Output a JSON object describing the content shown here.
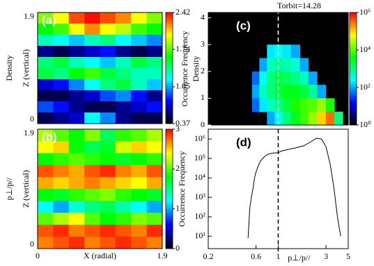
{
  "chart_data": [
    {
      "type": "heatmap",
      "panel_label": "(a)",
      "row_label": "Density",
      "ylabel": "Z (vertical)",
      "ylim": [
        0,
        1.9
      ],
      "yticks": [
        0,
        1.9
      ],
      "clim": [
        0.37,
        2.42
      ],
      "cticks": [
        0.37,
        1.05,
        1.74,
        2.42
      ],
      "colormap": [
        "#000000",
        "#0000ff",
        "#00ffff",
        "#00ff00",
        "#ffff00",
        "#ff0000"
      ],
      "values": [
        [
          1.8,
          2.0,
          2.3,
          2.4,
          2.3,
          2.2,
          2.0,
          1.8
        ],
        [
          1.6,
          1.7,
          2.0,
          2.2,
          2.0,
          1.9,
          1.7,
          1.6
        ],
        [
          1.3,
          1.2,
          1.1,
          1.3,
          1.4,
          1.2,
          1.1,
          1.0
        ],
        [
          0.6,
          0.5,
          0.6,
          0.7,
          0.8,
          0.6,
          0.5,
          0.6
        ],
        [
          1.4,
          1.5,
          1.3,
          1.2,
          1.1,
          1.3,
          1.5,
          1.4
        ],
        [
          1.5,
          1.4,
          1.6,
          1.7,
          1.5,
          1.4,
          1.3,
          1.3
        ],
        [
          0.7,
          0.8,
          1.0,
          1.2,
          1.4,
          1.5,
          1.3,
          1.1
        ],
        [
          0.5,
          0.5,
          0.6,
          0.7,
          0.9,
          1.0,
          0.8,
          0.6
        ],
        [
          0.9,
          0.8,
          0.6,
          0.5,
          0.5,
          0.6,
          0.7,
          0.8
        ],
        [
          0.5,
          0.6,
          0.7,
          1.2,
          1.0,
          0.6,
          0.5,
          0.5
        ]
      ]
    },
    {
      "type": "heatmap",
      "panel_label": "(b)",
      "row_label": "p⊥/p//",
      "ylabel": "Z (vertical)",
      "xlabel": "X (radial)",
      "xlim": [
        0,
        1.9
      ],
      "xticks": [
        0,
        1.9
      ],
      "ylim": [
        0,
        1.9
      ],
      "yticks": [
        0,
        1.9
      ],
      "clim": [
        0,
        3
      ],
      "cticks": [
        0,
        1,
        2,
        3
      ],
      "colormap": [
        "#000000",
        "#0000ff",
        "#00ffff",
        "#00ff00",
        "#ffff00",
        "#ff0000"
      ],
      "values": [
        [
          2.2,
          2.0,
          1.8,
          2.1,
          1.6,
          1.9,
          2.0,
          2.2
        ],
        [
          2.4,
          2.5,
          1.8,
          1.6,
          1.7,
          2.3,
          2.5,
          2.4
        ],
        [
          1.8,
          1.9,
          2.0,
          1.9,
          1.8,
          1.7,
          1.8,
          1.9
        ],
        [
          2.8,
          2.7,
          2.6,
          2.8,
          2.9,
          2.7,
          2.6,
          2.8
        ],
        [
          2.6,
          2.5,
          2.6,
          2.7,
          2.6,
          2.5,
          2.4,
          2.6
        ],
        [
          1.8,
          1.7,
          1.9,
          2.0,
          2.1,
          1.9,
          1.8,
          1.7
        ],
        [
          1.2,
          1.0,
          1.3,
          1.5,
          1.6,
          1.4,
          1.2,
          1.0
        ],
        [
          2.0,
          2.2,
          2.4,
          2.0,
          1.8,
          1.9,
          2.1,
          2.0
        ],
        [
          2.8,
          2.9,
          2.7,
          2.8,
          2.9,
          2.8,
          2.7,
          2.9
        ],
        [
          2.7,
          2.8,
          2.9,
          2.7,
          2.8,
          2.9,
          2.8,
          2.7
        ]
      ]
    },
    {
      "type": "histogram2d",
      "title": "Torbit=14.28",
      "panel_label": "(c)",
      "ylabel": "Density",
      "outer_label": "Occurrence Frequency",
      "log_x": true,
      "xlim": [
        0.2,
        5
      ],
      "ylim": [
        0,
        4.2
      ],
      "yticks": [
        0,
        1,
        2,
        3,
        4
      ],
      "vline": 1,
      "clim": [
        1,
        1000000
      ],
      "log_color": true,
      "cticks": [
        {
          "value": 1,
          "label": "10⁰"
        },
        {
          "value": 100,
          "label": "10²"
        },
        {
          "value": 10000,
          "label": "10⁴"
        },
        {
          "value": 1000000,
          "label": "10⁶"
        }
      ],
      "colormap": [
        "#000000",
        "#0000ff",
        "#00ffff",
        "#00ff00",
        "#ffff00",
        "#ff0000"
      ],
      "x": [
        0.5,
        0.6,
        0.7,
        0.85,
        1,
        1.2,
        1.5,
        1.8,
        2.2,
        2.7,
        3.3,
        4
      ],
      "y": [
        2.75,
        2.25,
        1.75,
        1.25,
        0.75,
        0.25
      ],
      "values": [
        [
          null,
          null,
          null,
          200,
          300,
          200,
          100,
          null,
          null,
          null,
          null,
          null
        ],
        [
          null,
          null,
          100,
          500,
          800,
          600,
          400,
          100,
          null,
          null,
          null,
          null
        ],
        [
          null,
          50,
          300,
          1000,
          2000,
          1500,
          1000,
          500,
          100,
          null,
          null,
          null
        ],
        [
          null,
          100,
          500,
          1000,
          2000,
          3000,
          3000,
          2000,
          800,
          100,
          null,
          null
        ],
        [
          null,
          50,
          200,
          500,
          1000,
          2000,
          5000,
          8000,
          10000,
          20000,
          5000,
          null
        ],
        [
          null,
          null,
          null,
          100,
          300,
          1000,
          3000,
          8000,
          20000,
          100000,
          300000,
          1000
        ]
      ]
    },
    {
      "type": "line",
      "panel_label": "(d)",
      "ylabel": "Occurrence Frequency",
      "xlabel": "p⊥/p//",
      "color": "#000000",
      "log_x": true,
      "log_y": true,
      "xlim": [
        0.2,
        5
      ],
      "xticks": [
        0.2,
        0.6,
        1,
        3,
        5
      ],
      "ylim": [
        2.3,
        3200000
      ],
      "vline": 1,
      "yticks": [
        {
          "value": 10,
          "label": "10¹"
        },
        {
          "value": 100,
          "label": "10²"
        },
        {
          "value": 1000,
          "label": "10³"
        },
        {
          "value": 10000,
          "label": "10⁴"
        },
        {
          "value": 100000,
          "label": "10⁵"
        },
        {
          "value": 1000000,
          "label": "10⁶"
        }
      ],
      "x": [
        0.5,
        0.52,
        0.54,
        0.56,
        0.58,
        0.6,
        0.63,
        0.66,
        0.7,
        0.75,
        0.8,
        0.9,
        1.0,
        1.1,
        1.3,
        1.5,
        1.8,
        2.1,
        2.4,
        2.7,
        3.0,
        3.3,
        3.6,
        3.9,
        4.2
      ],
      "values": [
        8,
        300,
        1000,
        3000,
        10000,
        20000,
        40000,
        70000,
        100000,
        140000,
        170000,
        190000,
        200000,
        250000,
        300000,
        350000,
        450000,
        700000,
        1100000,
        1000000,
        400000,
        50000,
        3000,
        100,
        10
      ]
    }
  ]
}
